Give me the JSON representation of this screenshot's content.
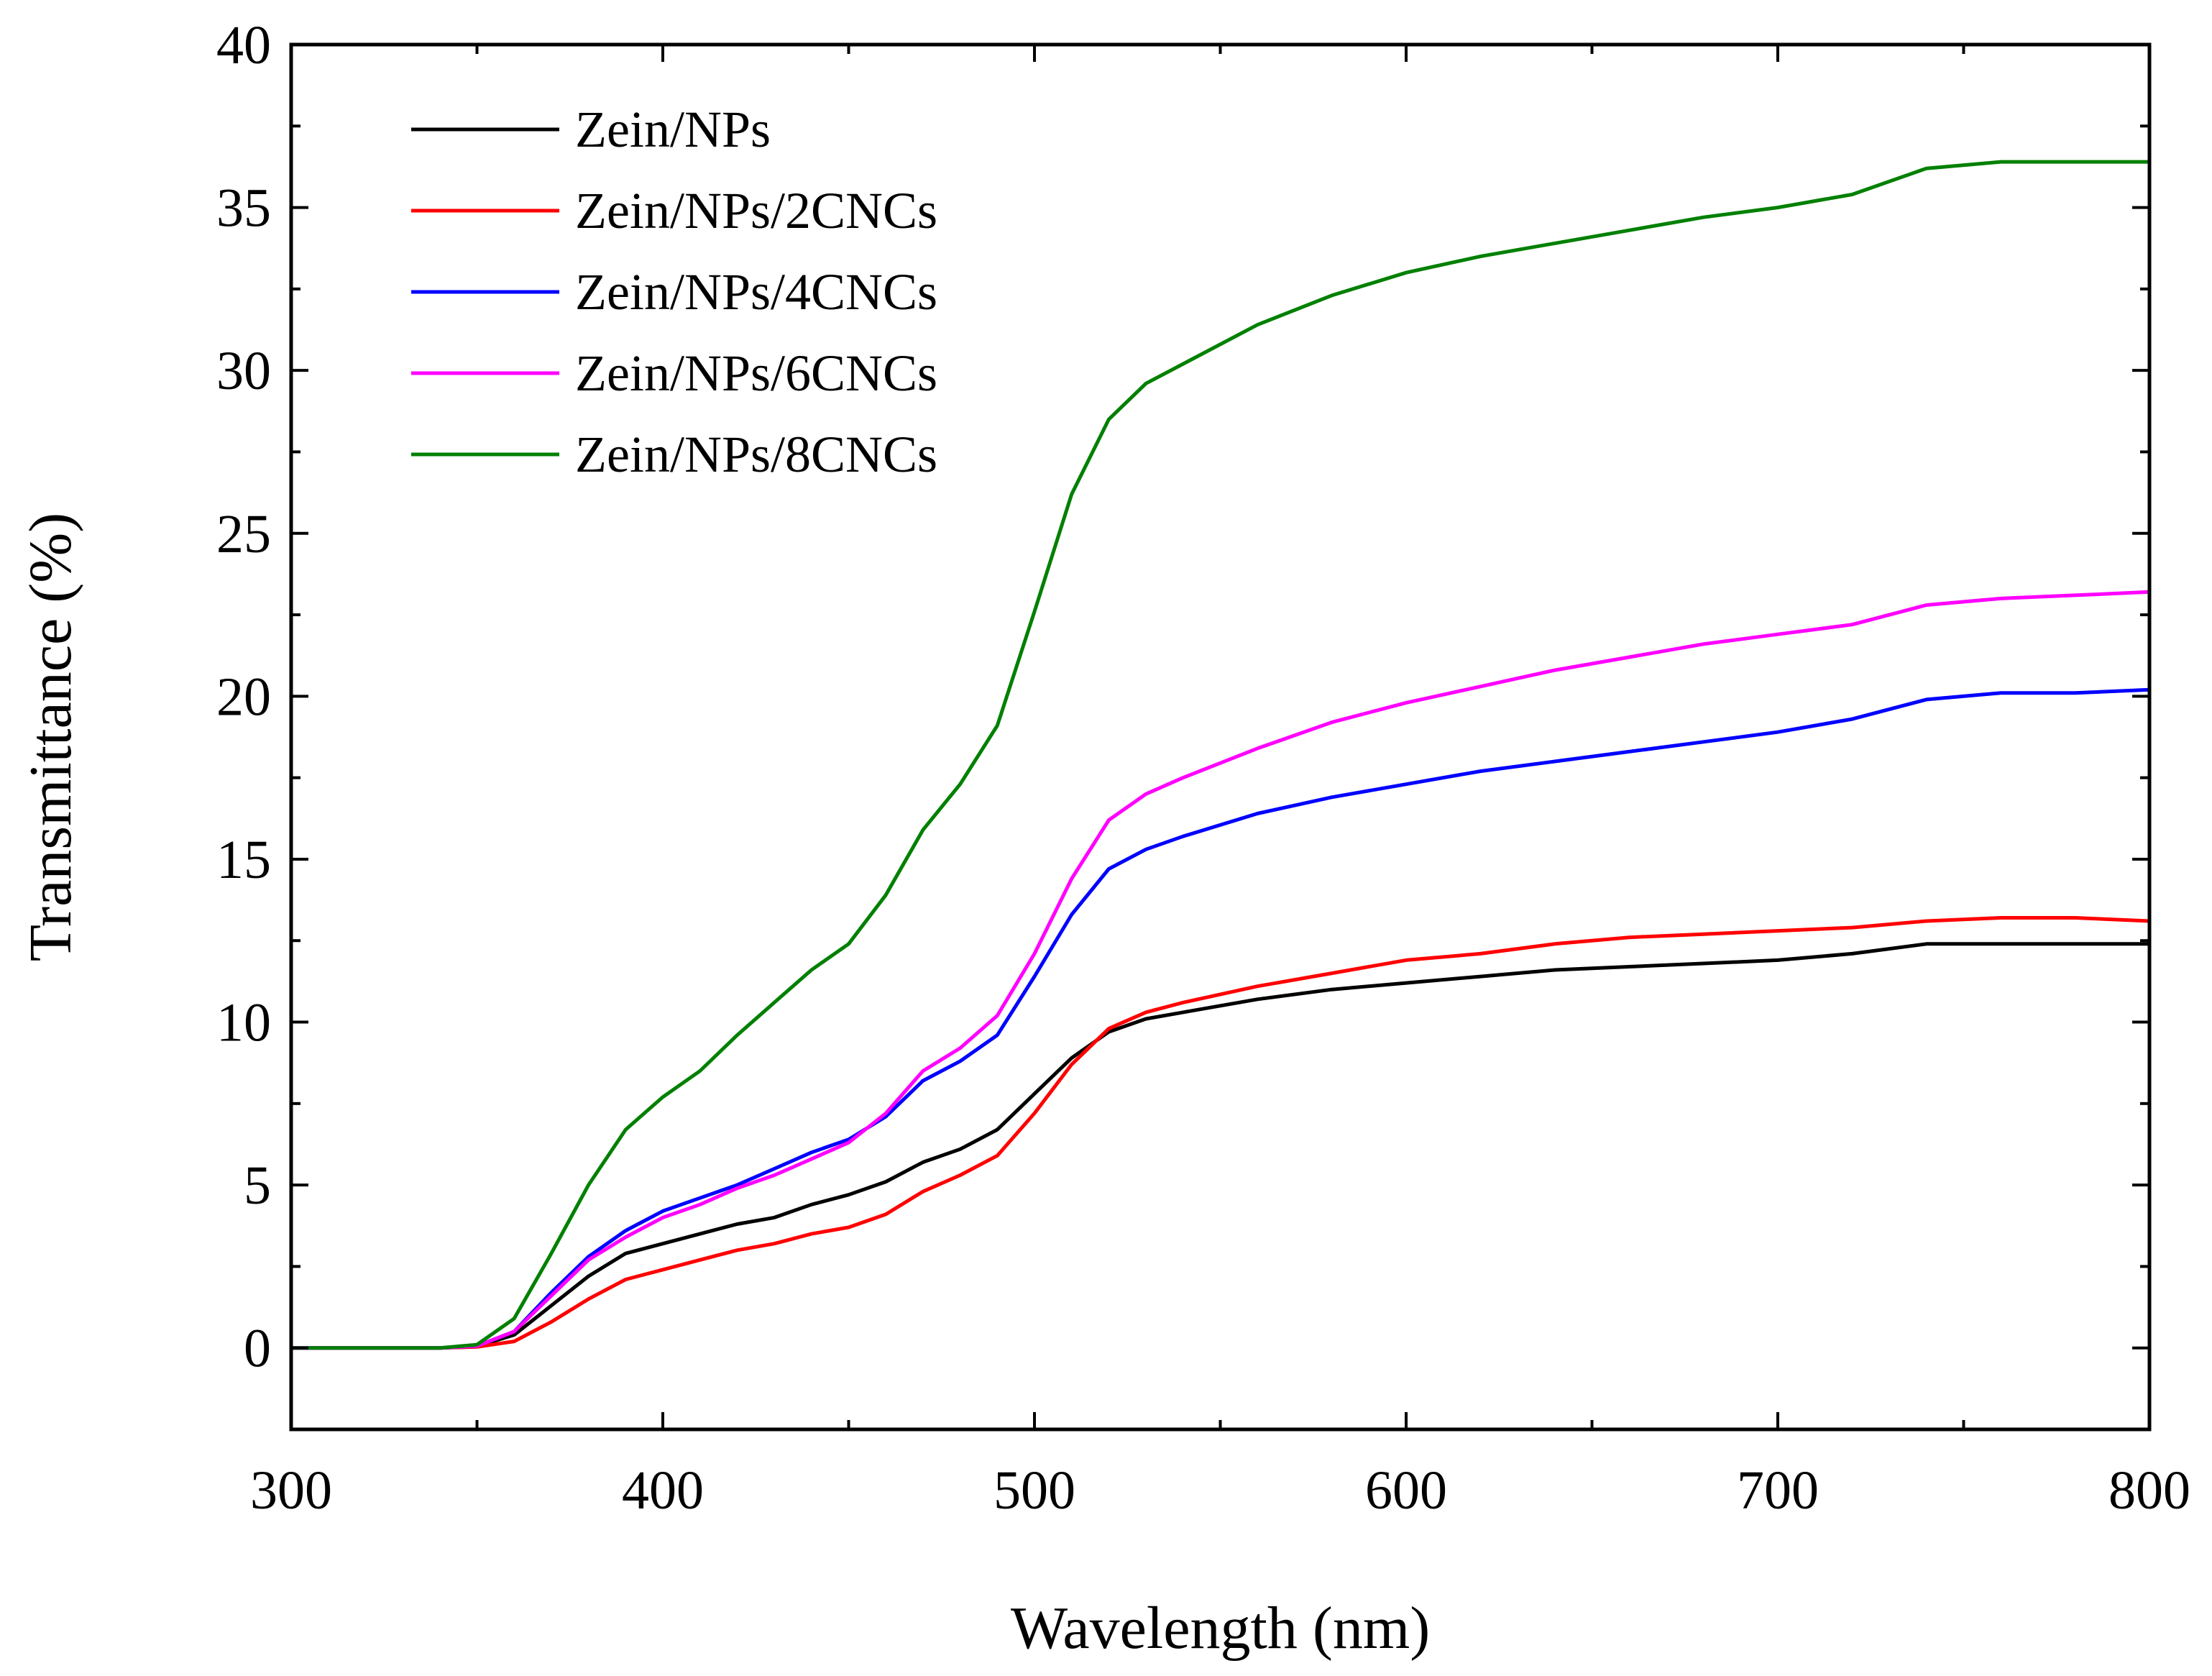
{
  "chart_data": {
    "type": "line",
    "title": "",
    "xlabel": "Wavelength (nm)",
    "ylabel": "Transmittance (%)",
    "xlim": [
      300,
      800
    ],
    "ylim": [
      -2.5,
      40
    ],
    "xticks": [
      300,
      400,
      500,
      600,
      700,
      800
    ],
    "yticks": [
      0,
      5,
      10,
      15,
      20,
      25,
      30,
      35,
      40
    ],
    "legend_position": "top-left",
    "grid": false,
    "x": [
      300,
      340,
      350,
      360,
      370,
      380,
      390,
      400,
      410,
      420,
      430,
      440,
      450,
      460,
      470,
      480,
      490,
      500,
      510,
      520,
      530,
      540,
      560,
      580,
      600,
      620,
      640,
      660,
      680,
      700,
      720,
      740,
      760,
      780,
      800
    ],
    "series": [
      {
        "name": "Zein/NPs",
        "color": "#000000",
        "values": [
          0,
          0,
          0.05,
          0.4,
          1.3,
          2.2,
          2.9,
          3.2,
          3.5,
          3.8,
          4.0,
          4.4,
          4.7,
          5.1,
          5.7,
          6.1,
          6.7,
          7.8,
          8.9,
          9.7,
          10.1,
          10.3,
          10.7,
          11.0,
          11.2,
          11.4,
          11.6,
          11.7,
          11.8,
          11.9,
          12.1,
          12.4,
          12.4,
          12.4,
          12.4
        ]
      },
      {
        "name": "Zein/NPs/2CNCs",
        "color": "#ff0000",
        "values": [
          0,
          0,
          0.03,
          0.2,
          0.8,
          1.5,
          2.1,
          2.4,
          2.7,
          3.0,
          3.2,
          3.5,
          3.7,
          4.1,
          4.8,
          5.3,
          5.9,
          7.2,
          8.7,
          9.8,
          10.3,
          10.6,
          11.1,
          11.5,
          11.9,
          12.1,
          12.4,
          12.6,
          12.7,
          12.8,
          12.9,
          13.1,
          13.2,
          13.2,
          13.1
        ]
      },
      {
        "name": "Zein/NPs/4CNCs",
        "color": "#0000ff",
        "values": [
          0,
          0,
          0.06,
          0.5,
          1.7,
          2.8,
          3.6,
          4.2,
          4.6,
          5.0,
          5.5,
          6.0,
          6.4,
          7.1,
          8.2,
          8.8,
          9.6,
          11.4,
          13.3,
          14.7,
          15.3,
          15.7,
          16.4,
          16.9,
          17.3,
          17.7,
          18.0,
          18.3,
          18.6,
          18.9,
          19.3,
          19.9,
          20.1,
          20.1,
          20.2
        ]
      },
      {
        "name": "Zein/NPs/6CNCs",
        "color": "#ff00ff",
        "values": [
          0,
          0,
          0.06,
          0.5,
          1.6,
          2.7,
          3.4,
          4.0,
          4.4,
          4.9,
          5.3,
          5.8,
          6.3,
          7.2,
          8.5,
          9.2,
          10.2,
          12.1,
          14.4,
          16.2,
          17.0,
          17.5,
          18.4,
          19.2,
          19.8,
          20.3,
          20.8,
          21.2,
          21.6,
          21.9,
          22.2,
          22.8,
          23.0,
          23.1,
          23.2
        ]
      },
      {
        "name": "Zein/NPs/8CNCs",
        "color": "#008000",
        "values": [
          0,
          0,
          0.1,
          0.9,
          2.9,
          5.0,
          6.7,
          7.7,
          8.5,
          9.6,
          10.6,
          11.6,
          12.4,
          13.9,
          15.9,
          17.3,
          19.1,
          22.6,
          26.2,
          28.5,
          29.6,
          30.2,
          31.4,
          32.3,
          33.0,
          33.5,
          33.9,
          34.3,
          34.7,
          35.0,
          35.4,
          36.2,
          36.4,
          36.4,
          36.4
        ]
      }
    ]
  }
}
